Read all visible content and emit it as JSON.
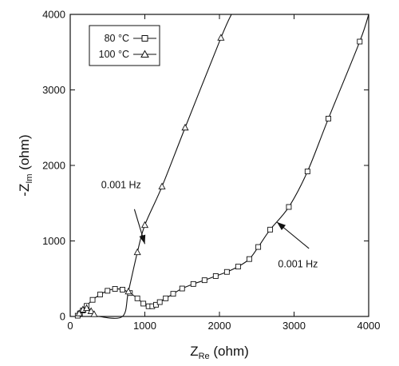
{
  "chart_data": {
    "type": "scatter",
    "xlabel": {
      "main": "Z",
      "sub": "Re",
      "unit": " (ohm)"
    },
    "ylabel": {
      "main": "-Z",
      "sub": "Im",
      "unit": " (ohm)"
    },
    "xlim": [
      0,
      4000
    ],
    "ylim": [
      0,
      4000
    ],
    "x_ticks": [
      0,
      1000,
      2000,
      3000,
      4000
    ],
    "y_ticks": [
      0,
      1000,
      2000,
      3000,
      4000
    ],
    "grid": false,
    "legend_position": "top-left",
    "series": [
      {
        "name": "80 °C",
        "marker": "square",
        "points": [
          [
            100,
            10
          ],
          [
            130,
            40
          ],
          [
            170,
            80
          ],
          [
            220,
            140
          ],
          [
            300,
            220
          ],
          [
            400,
            290
          ],
          [
            500,
            340
          ],
          [
            600,
            365
          ],
          [
            700,
            355
          ],
          [
            800,
            310
          ],
          [
            900,
            240
          ],
          [
            980,
            170
          ],
          [
            1050,
            135
          ],
          [
            1100,
            135
          ],
          [
            1150,
            155
          ],
          [
            1200,
            190
          ],
          [
            1280,
            240
          ],
          [
            1380,
            300
          ],
          [
            1500,
            370
          ],
          [
            1650,
            430
          ],
          [
            1800,
            480
          ],
          [
            1950,
            535
          ],
          [
            2100,
            590
          ],
          [
            2250,
            660
          ],
          [
            2400,
            760
          ],
          [
            2520,
            920
          ],
          [
            2680,
            1150
          ],
          [
            2930,
            1450
          ],
          [
            3180,
            1920
          ],
          [
            3460,
            2620
          ],
          [
            3880,
            3640
          ]
        ],
        "curve": [
          [
            90,
            0
          ],
          [
            100,
            10
          ],
          [
            130,
            40
          ],
          [
            170,
            80
          ],
          [
            220,
            140
          ],
          [
            300,
            220
          ],
          [
            400,
            290
          ],
          [
            500,
            340
          ],
          [
            600,
            365
          ],
          [
            700,
            355
          ],
          [
            800,
            310
          ],
          [
            900,
            240
          ],
          [
            980,
            170
          ],
          [
            1050,
            135
          ],
          [
            1100,
            135
          ],
          [
            1150,
            155
          ],
          [
            1200,
            190
          ],
          [
            1280,
            240
          ],
          [
            1380,
            300
          ],
          [
            1500,
            370
          ],
          [
            1650,
            430
          ],
          [
            1800,
            480
          ],
          [
            1950,
            535
          ],
          [
            2100,
            590
          ],
          [
            2250,
            660
          ],
          [
            2400,
            760
          ],
          [
            2520,
            920
          ],
          [
            2680,
            1150
          ],
          [
            2930,
            1450
          ],
          [
            3180,
            1920
          ],
          [
            3460,
            2620
          ],
          [
            3880,
            3640
          ],
          [
            4000,
            4000
          ]
        ]
      },
      {
        "name": "100 °C",
        "marker": "triangle",
        "points": [
          [
            120,
            40
          ],
          [
            170,
            90
          ],
          [
            220,
            110
          ],
          [
            280,
            70
          ],
          [
            320,
            30
          ],
          [
            780,
            330
          ],
          [
            900,
            850
          ],
          [
            1000,
            1210
          ],
          [
            1230,
            1720
          ],
          [
            1540,
            2500
          ],
          [
            2020,
            3690
          ]
        ],
        "curve": [
          [
            90,
            0
          ],
          [
            110,
            30
          ],
          [
            150,
            80
          ],
          [
            200,
            110
          ],
          [
            250,
            100
          ],
          [
            300,
            60
          ],
          [
            340,
            20
          ],
          [
            380,
            0
          ],
          [
            700,
            0
          ],
          [
            780,
            330
          ],
          [
            900,
            850
          ],
          [
            1000,
            1210
          ],
          [
            1230,
            1720
          ],
          [
            1540,
            2500
          ],
          [
            2020,
            3690
          ],
          [
            2160,
            4000
          ]
        ]
      }
    ],
    "annotations": [
      {
        "text": "0.001 Hz",
        "anchor": [
          950,
          1700
        ],
        "arrow_from": [
          860,
          1420
        ],
        "arrow_to": [
          1000,
          960
        ]
      },
      {
        "text": "0.001 Hz",
        "anchor": [
          3320,
          650
        ],
        "arrow_from": [
          3200,
          900
        ],
        "arrow_to": [
          2770,
          1250
        ]
      }
    ]
  }
}
